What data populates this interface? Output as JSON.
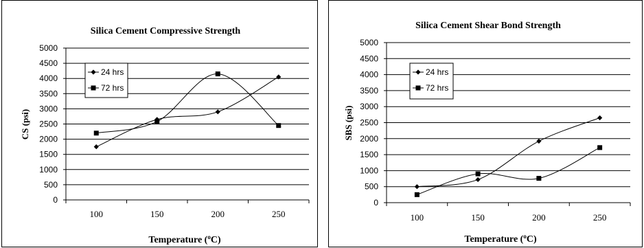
{
  "chart_data": [
    {
      "type": "line",
      "title": "Silica Cement Compressive Strength",
      "xlabel": "Temperature (",
      "xlabel_sup": "o",
      "xlabel_unit": "C)",
      "ylabel": "CS (psi)",
      "categories": [
        "100",
        "150",
        "200",
        "250"
      ],
      "x": [
        100,
        150,
        200,
        250
      ],
      "ylim": [
        0,
        5000
      ],
      "ytick_step": 500,
      "yticks": [
        "0",
        "500",
        "1000",
        "1500",
        "2000",
        "2500",
        "3000",
        "3500",
        "4000",
        "4500",
        "5000"
      ],
      "grid": true,
      "legend_position": "top-left",
      "series": [
        {
          "name": "24 hrs",
          "marker": "diamond",
          "values": [
            1750,
            2650,
            2900,
            4050
          ]
        },
        {
          "name": "72 hrs",
          "marker": "square",
          "values": [
            2200,
            2580,
            4150,
            2450
          ]
        }
      ]
    },
    {
      "type": "line",
      "title": "Silica Cement Shear Bond Strength",
      "xlabel": "Temperature (",
      "xlabel_sup": "o",
      "xlabel_unit": "C)",
      "ylabel": "SBS (psi)",
      "categories": [
        "100",
        "150",
        "200",
        "250"
      ],
      "x": [
        100,
        150,
        200,
        250
      ],
      "ylim": [
        0,
        5000
      ],
      "ytick_step": 500,
      "yticks": [
        "0",
        "500",
        "1000",
        "1500",
        "2000",
        "2500",
        "3000",
        "3500",
        "4000",
        "4500",
        "5000"
      ],
      "grid": true,
      "legend_position": "top-left",
      "series": [
        {
          "name": "24 hrs",
          "marker": "diamond",
          "values": [
            500,
            720,
            1920,
            2650
          ]
        },
        {
          "name": "72 hrs",
          "marker": "square",
          "values": [
            250,
            900,
            760,
            1720
          ]
        }
      ]
    }
  ]
}
